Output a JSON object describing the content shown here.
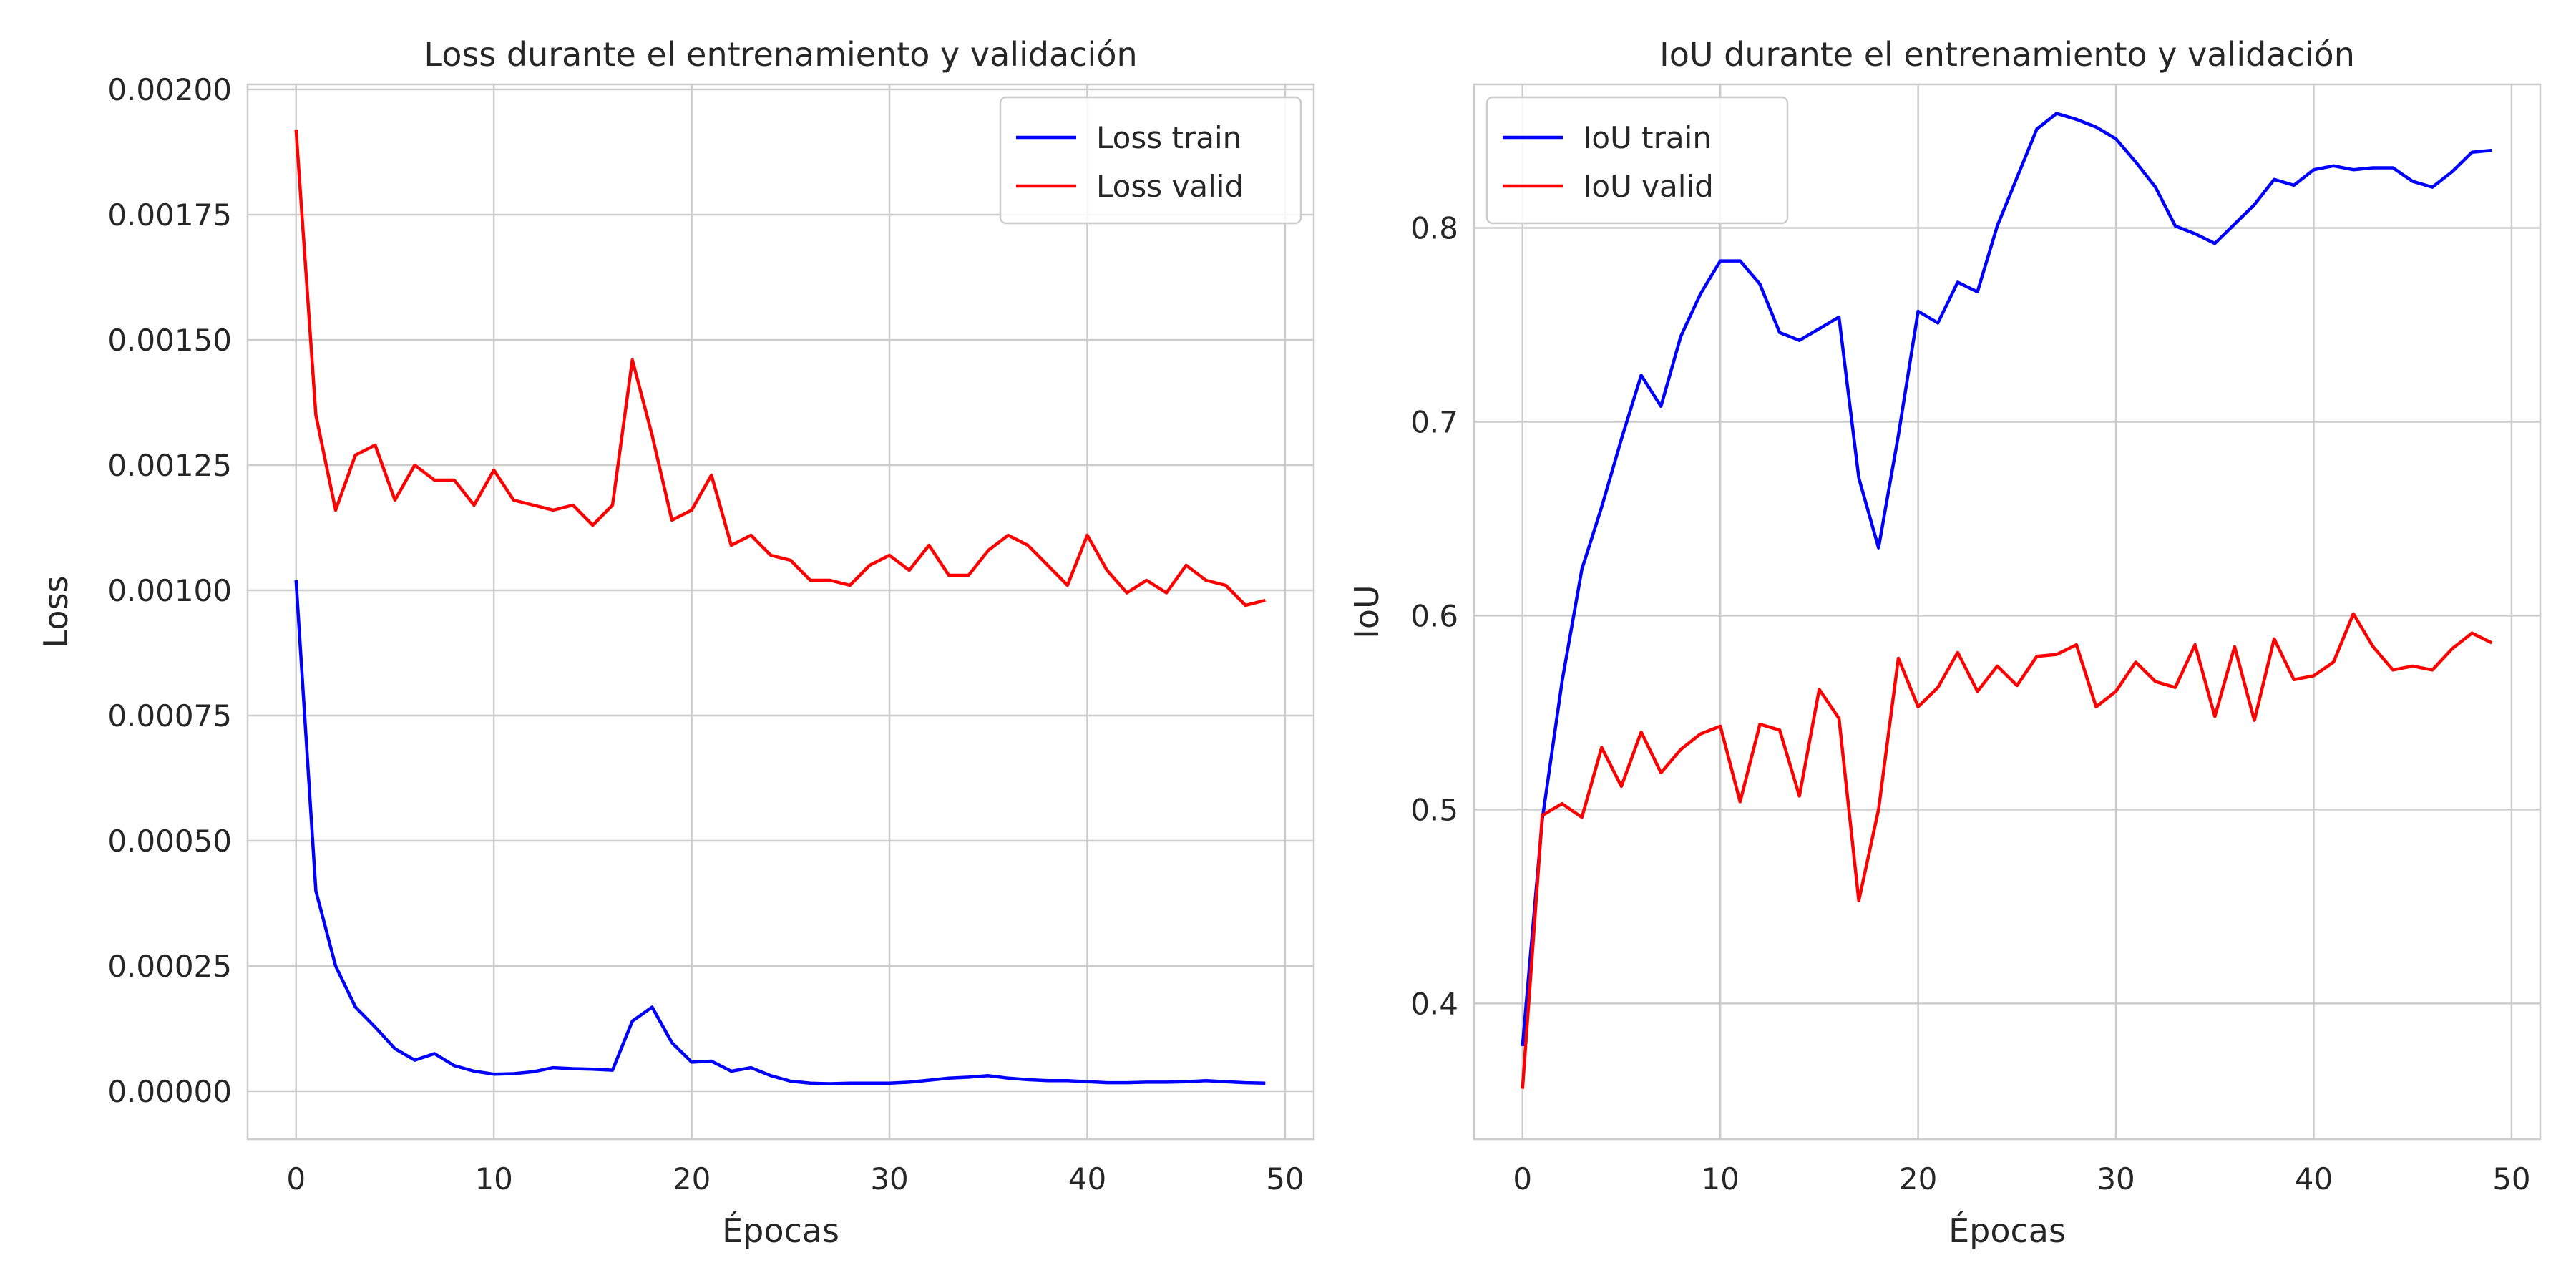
{
  "chart_data": [
    {
      "type": "line",
      "title": "Loss durante el entrenamiento y validación",
      "xlabel": "Épocas",
      "ylabel": "Loss",
      "xlim": [
        -2.45,
        51.45
      ],
      "ylim": [
        -9.57e-05,
        0.00201
      ],
      "xticks": [
        0,
        10,
        20,
        30,
        40,
        50
      ],
      "yticks": [
        0,
        0.00025,
        0.0005,
        0.00075,
        0.001,
        0.00125,
        0.0015,
        0.00175,
        0.002
      ],
      "ytick_labels": [
        "0.00000",
        "0.00025",
        "0.00050",
        "0.00075",
        "0.00100",
        "0.00125",
        "0.00150",
        "0.00175",
        "0.00200"
      ],
      "grid": true,
      "legend_position": "upper right",
      "x": [
        0,
        1,
        2,
        3,
        4,
        5,
        6,
        7,
        8,
        9,
        10,
        11,
        12,
        13,
        14,
        15,
        16,
        17,
        18,
        19,
        20,
        21,
        22,
        23,
        24,
        25,
        26,
        27,
        28,
        29,
        30,
        31,
        32,
        33,
        34,
        35,
        36,
        37,
        38,
        39,
        40,
        41,
        42,
        43,
        44,
        45,
        46,
        47,
        48,
        49
      ],
      "series": [
        {
          "name": "Loss train",
          "color": "#0000ff",
          "values": [
            0.00102,
            0.0004,
            0.00025,
            0.000168,
            0.000128,
            8.5e-05,
            6.2e-05,
            7.5e-05,
            5.1e-05,
            4e-05,
            3.4e-05,
            3.5e-05,
            3.9e-05,
            4.7e-05,
            4.5e-05,
            4.4e-05,
            4.2e-05,
            0.00014,
            0.000168,
            9.7e-05,
            5.8e-05,
            6e-05,
            4e-05,
            4.7e-05,
            3.1e-05,
            2e-05,
            1.6e-05,
            1.5e-05,
            1.6e-05,
            1.6e-05,
            1.6e-05,
            1.8e-05,
            2.2e-05,
            2.6e-05,
            2.8e-05,
            3.1e-05,
            2.6e-05,
            2.3e-05,
            2.1e-05,
            2.1e-05,
            1.9e-05,
            1.7e-05,
            1.7e-05,
            1.8e-05,
            1.8e-05,
            1.9e-05,
            2.1e-05,
            1.9e-05,
            1.7e-05,
            1.6e-05
          ]
        },
        {
          "name": "Loss valid",
          "color": "#ff0000",
          "values": [
            0.00192,
            0.00135,
            0.00116,
            0.00127,
            0.00129,
            0.00118,
            0.00125,
            0.00122,
            0.00122,
            0.00117,
            0.00124,
            0.00118,
            0.00117,
            0.00116,
            0.00117,
            0.00113,
            0.00117,
            0.00146,
            0.00131,
            0.00114,
            0.00116,
            0.00123,
            0.00109,
            0.00111,
            0.00107,
            0.00106,
            0.00102,
            0.00102,
            0.00101,
            0.00105,
            0.00107,
            0.00104,
            0.00109,
            0.00103,
            0.00103,
            0.00108,
            0.00111,
            0.00109,
            0.00105,
            0.00101,
            0.00111,
            0.00104,
            0.000995,
            0.00102,
            0.000995,
            0.00105,
            0.00102,
            0.00101,
            0.00097,
            0.00098
          ]
        }
      ]
    },
    {
      "type": "line",
      "title": "IoU durante el entrenamiento y validación",
      "xlabel": "Épocas",
      "ylabel": "IoU",
      "xlim": [
        -2.45,
        51.45
      ],
      "ylim": [
        0.33,
        0.874
      ],
      "xticks": [
        0,
        10,
        20,
        30,
        40,
        50
      ],
      "yticks": [
        0.4,
        0.5,
        0.6,
        0.7,
        0.8
      ],
      "ytick_labels": [
        "0.4",
        "0.5",
        "0.6",
        "0.7",
        "0.8"
      ],
      "grid": true,
      "legend_position": "upper left",
      "x": [
        0,
        1,
        2,
        3,
        4,
        5,
        6,
        7,
        8,
        9,
        10,
        11,
        12,
        13,
        14,
        15,
        16,
        17,
        18,
        19,
        20,
        21,
        22,
        23,
        24,
        25,
        26,
        27,
        28,
        29,
        30,
        31,
        32,
        33,
        34,
        35,
        36,
        37,
        38,
        39,
        40,
        41,
        42,
        43,
        44,
        45,
        46,
        47,
        48,
        49
      ],
      "series": [
        {
          "name": "IoU train",
          "color": "#0000ff",
          "values": [
            0.378,
            0.495,
            0.566,
            0.624,
            0.656,
            0.691,
            0.724,
            0.708,
            0.744,
            0.766,
            0.783,
            0.783,
            0.771,
            0.746,
            0.742,
            0.748,
            0.754,
            0.671,
            0.635,
            0.693,
            0.757,
            0.751,
            0.772,
            0.767,
            0.801,
            0.826,
            0.851,
            0.859,
            0.856,
            0.852,
            0.846,
            0.834,
            0.821,
            0.801,
            0.797,
            0.792,
            0.802,
            0.812,
            0.825,
            0.822,
            0.83,
            0.832,
            0.83,
            0.831,
            0.831,
            0.824,
            0.821,
            0.829,
            0.839,
            0.84
          ]
        },
        {
          "name": "IoU valid",
          "color": "#ff0000",
          "values": [
            0.356,
            0.497,
            0.503,
            0.496,
            0.532,
            0.512,
            0.54,
            0.519,
            0.531,
            0.539,
            0.543,
            0.504,
            0.544,
            0.541,
            0.507,
            0.562,
            0.547,
            0.453,
            0.5,
            0.578,
            0.553,
            0.563,
            0.581,
            0.561,
            0.574,
            0.564,
            0.579,
            0.58,
            0.585,
            0.553,
            0.561,
            0.576,
            0.566,
            0.563,
            0.585,
            0.548,
            0.584,
            0.546,
            0.588,
            0.567,
            0.569,
            0.576,
            0.601,
            0.584,
            0.572,
            0.574,
            0.572,
            0.583,
            0.591,
            0.586
          ]
        }
      ]
    }
  ]
}
